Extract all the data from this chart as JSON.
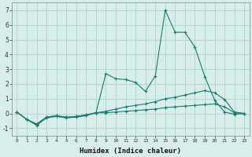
{
  "xlabel": "Humidex (Indice chaleur)",
  "xlim": [
    -0.5,
    23.5
  ],
  "ylim": [
    -1.5,
    7.5
  ],
  "xticks": [
    0,
    1,
    2,
    3,
    4,
    5,
    6,
    7,
    8,
    9,
    10,
    11,
    12,
    13,
    14,
    15,
    16,
    17,
    18,
    19,
    20,
    21,
    22,
    23
  ],
  "yticks": [
    -1,
    0,
    1,
    2,
    3,
    4,
    5,
    6,
    7
  ],
  "line_color": "#1a7a6e",
  "background_color": "#d8eeeb",
  "grid_color": "#a8ccc8",
  "line1_x": [
    0,
    1,
    2,
    3,
    4,
    5,
    6,
    7,
    8,
    9,
    10,
    11,
    12,
    13,
    14,
    15,
    16,
    17,
    18,
    19,
    20,
    21,
    22,
    23
  ],
  "line1_y": [
    0.1,
    -0.4,
    -0.8,
    -0.3,
    -0.2,
    -0.3,
    -0.25,
    -0.15,
    0.05,
    2.7,
    2.35,
    2.3,
    2.1,
    1.5,
    2.55,
    7.0,
    5.5,
    5.5,
    4.5,
    2.5,
    0.9,
    0.1,
    -0.05,
    0.0
  ],
  "line2_x": [
    0,
    1,
    2,
    3,
    4,
    5,
    6,
    7,
    8,
    9,
    10,
    11,
    12,
    13,
    14,
    15,
    16,
    17,
    18,
    19,
    20,
    21,
    22,
    23
  ],
  "line2_y": [
    0.1,
    -0.4,
    -0.7,
    -0.25,
    -0.15,
    -0.25,
    -0.2,
    -0.1,
    0.05,
    0.15,
    0.3,
    0.45,
    0.55,
    0.65,
    0.8,
    1.0,
    1.1,
    1.25,
    1.4,
    1.55,
    1.4,
    0.95,
    0.1,
    0.0
  ],
  "line3_x": [
    0,
    1,
    2,
    3,
    4,
    5,
    6,
    7,
    8,
    9,
    10,
    11,
    12,
    13,
    14,
    15,
    16,
    17,
    18,
    19,
    20,
    21,
    22,
    23
  ],
  "line3_y": [
    0.1,
    -0.4,
    -0.75,
    -0.25,
    -0.15,
    -0.25,
    -0.2,
    -0.1,
    0.05,
    0.05,
    0.1,
    0.15,
    0.2,
    0.25,
    0.3,
    0.4,
    0.45,
    0.5,
    0.55,
    0.6,
    0.65,
    0.45,
    0.05,
    0.0
  ]
}
